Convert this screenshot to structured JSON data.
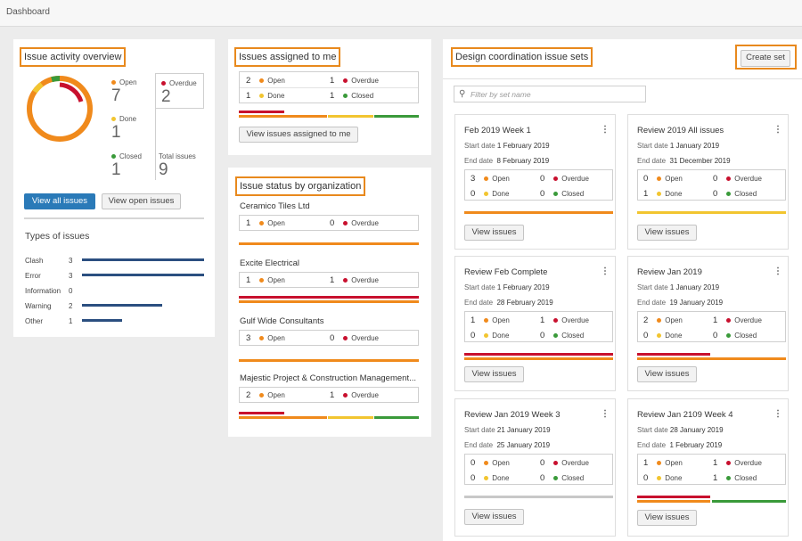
{
  "breadcrumb": "Dashboard",
  "colors": {
    "open": "#f08a1c",
    "overdue": "#c8102e",
    "done": "#f2c530",
    "closed": "#3a9a3a",
    "primary": "#2a7ab8",
    "highlight": "#e8891d"
  },
  "overview": {
    "title": "Issue activity overview",
    "open_label": "Open",
    "open": "7",
    "overdue_label": "Overdue",
    "overdue": "2",
    "done_label": "Done",
    "done": "1",
    "closed_label": "Closed",
    "closed": "1",
    "total_label": "Total issues",
    "total": "9",
    "view_all": "View all issues",
    "view_open": "View open issues",
    "types_title": "Types of issues",
    "types": [
      {
        "label": "Clash",
        "count": "3",
        "fraction": 1.0
      },
      {
        "label": "Error",
        "count": "3",
        "fraction": 1.0
      },
      {
        "label": "Information",
        "count": "0",
        "fraction": 0
      },
      {
        "label": "Warning",
        "count": "2",
        "fraction": 0.66
      },
      {
        "label": "Other",
        "count": "1",
        "fraction": 0.33
      }
    ]
  },
  "assigned": {
    "title": "Issues assigned to me",
    "open": "2",
    "open_label": "Open",
    "overdue": "1",
    "overdue_label": "Overdue",
    "done": "1",
    "done_label": "Done",
    "closed": "1",
    "closed_label": "Closed",
    "button": "View issues assigned to me"
  },
  "org": {
    "title": "Issue status by organization",
    "open_label": "Open",
    "overdue_label": "Overdue",
    "items": [
      {
        "name": "Ceramico Tiles Ltd",
        "open": "1",
        "overdue": "0"
      },
      {
        "name": "Excite Electrical",
        "open": "1",
        "overdue": "1"
      },
      {
        "name": "Gulf Wide Consultants",
        "open": "3",
        "overdue": "0"
      },
      {
        "name": "Majestic Project & Construction Management...",
        "open": "2",
        "overdue": "1"
      }
    ]
  },
  "sets": {
    "title": "Design coordination issue sets",
    "create": "Create set",
    "filter_placeholder": "Filter by set name",
    "start_label": "Start date",
    "end_label": "End date",
    "open_label": "Open",
    "overdue_label": "Overdue",
    "done_label": "Done",
    "closed_label": "Closed",
    "view_label": "View issues",
    "cards": [
      {
        "name": "Feb 2019 Week 1",
        "start": "1 February 2019",
        "end": "8 February 2019",
        "open": "3",
        "overdue": "0",
        "done": "0",
        "closed": "0"
      },
      {
        "name": "Review 2019 All issues",
        "start": "1 January 2019",
        "end": "31 December 2019",
        "open": "0",
        "overdue": "0",
        "done": "1",
        "closed": "0"
      },
      {
        "name": "Review Feb Complete",
        "start": "1 February 2019",
        "end": "28 February 2019",
        "open": "1",
        "overdue": "1",
        "done": "0",
        "closed": "0"
      },
      {
        "name": "Review Jan 2019",
        "start": "1 January 2019",
        "end": "19 January 2019",
        "open": "2",
        "overdue": "1",
        "done": "0",
        "closed": "0"
      },
      {
        "name": "Review Jan 2019 Week 3",
        "start": "21 January 2019",
        "end": "25 January 2019",
        "open": "0",
        "overdue": "0",
        "done": "0",
        "closed": "0"
      },
      {
        "name": "Review Jan 2109 Week 4",
        "start": "28 January 2019",
        "end": "1 February 2019",
        "open": "1",
        "overdue": "1",
        "done": "0",
        "closed": "1"
      }
    ]
  }
}
